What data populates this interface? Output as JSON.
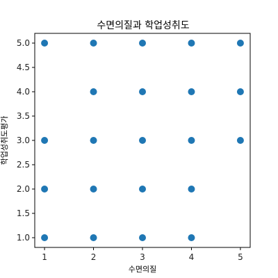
{
  "chart_data": {
    "type": "scatter",
    "title": "수면의질과 학업성취도",
    "xlabel": "수면의질",
    "ylabel": "학업성취도평가",
    "xlim": [
      0.8,
      5.2
    ],
    "ylim": [
      0.8,
      5.2
    ],
    "xticks": [
      "1",
      "2",
      "3",
      "4",
      "5"
    ],
    "yticks": [
      "1.0",
      "1.5",
      "2.0",
      "2.5",
      "3.0",
      "3.5",
      "4.0",
      "4.5",
      "5.0"
    ],
    "grid": false,
    "point_color": "#1f77b4",
    "points": [
      {
        "x": 1,
        "y": 1
      },
      {
        "x": 1,
        "y": 2
      },
      {
        "x": 1,
        "y": 3
      },
      {
        "x": 1,
        "y": 5
      },
      {
        "x": 2,
        "y": 1
      },
      {
        "x": 2,
        "y": 2
      },
      {
        "x": 2,
        "y": 3
      },
      {
        "x": 2,
        "y": 4
      },
      {
        "x": 2,
        "y": 5
      },
      {
        "x": 3,
        "y": 1
      },
      {
        "x": 3,
        "y": 2
      },
      {
        "x": 3,
        "y": 3
      },
      {
        "x": 3,
        "y": 4
      },
      {
        "x": 3,
        "y": 5
      },
      {
        "x": 4,
        "y": 1
      },
      {
        "x": 4,
        "y": 2
      },
      {
        "x": 4,
        "y": 3
      },
      {
        "x": 4,
        "y": 4
      },
      {
        "x": 4,
        "y": 5
      },
      {
        "x": 5,
        "y": 3
      },
      {
        "x": 5,
        "y": 4
      },
      {
        "x": 5,
        "y": 5
      }
    ]
  }
}
